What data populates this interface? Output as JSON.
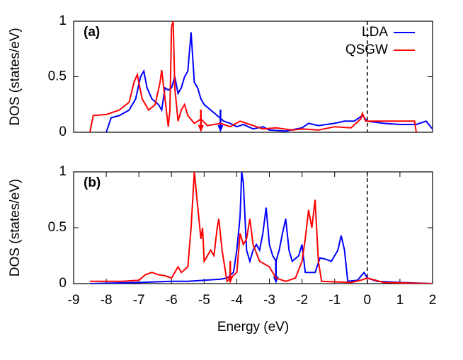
{
  "chart_data": [
    {
      "type": "line",
      "label": "(a)",
      "ylabel": "DOS (states/eV)",
      "xlim": [
        -9,
        2
      ],
      "ylim": [
        0,
        1
      ],
      "yticks": [
        0,
        0.5,
        1
      ],
      "vline": 0,
      "legend": "top-right",
      "series": [
        {
          "name": "LDA",
          "color": "#0000ff",
          "arrow_x": -4.5,
          "x": [
            -8.0,
            -7.85,
            -7.6,
            -7.3,
            -7.1,
            -6.95,
            -6.85,
            -6.75,
            -6.6,
            -6.4,
            -6.3,
            -6.2,
            -6.1,
            -6.0,
            -5.9,
            -5.8,
            -5.7,
            -5.6,
            -5.5,
            -5.4,
            -5.3,
            -5.2,
            -5.1,
            -5.0,
            -4.8,
            -4.6,
            -4.4,
            -4.2,
            -4.0,
            -3.8,
            -3.5,
            -3.2,
            -3.0,
            -2.5,
            -2.0,
            -1.8,
            -1.5,
            -1.0,
            -0.7,
            -0.4,
            -0.15,
            0,
            0.5,
            1.0,
            1.5,
            1.8,
            2.0
          ],
          "values": [
            0,
            0.13,
            0.15,
            0.2,
            0.3,
            0.5,
            0.55,
            0.4,
            0.3,
            0.25,
            0.2,
            0.4,
            0.38,
            0.4,
            0.5,
            0.35,
            0.4,
            0.5,
            0.55,
            0.9,
            0.45,
            0.4,
            0.3,
            0.25,
            0.2,
            0.15,
            0.1,
            0.08,
            0.05,
            0.07,
            0.03,
            0.05,
            0.02,
            0.01,
            0.04,
            0.08,
            0.06,
            0.08,
            0.1,
            0.1,
            0.15,
            0.1,
            0.08,
            0.07,
            0.07,
            0.1,
            0.03
          ]
        },
        {
          "name": "QSGW",
          "color": "#ff0000",
          "arrow_x": -5.1,
          "x": [
            -8.5,
            -8.4,
            -8.0,
            -7.6,
            -7.3,
            -7.15,
            -7.05,
            -6.9,
            -6.7,
            -6.5,
            -6.35,
            -6.3,
            -6.2,
            -6.1,
            -6.05,
            -6.0,
            -5.95,
            -5.9,
            -5.8,
            -5.7,
            -5.6,
            -5.5,
            -5.3,
            -5.1,
            -4.9,
            -4.5,
            -4.2,
            -3.9,
            -3.6,
            -3.2,
            -2.8,
            -2.3,
            -2.0,
            -1.5,
            -1.0,
            -0.5,
            -0.2,
            -0.15,
            -0.05,
            0.5,
            1.0,
            1.45,
            1.5
          ],
          "values": [
            0,
            0.15,
            0.16,
            0.2,
            0.27,
            0.45,
            0.52,
            0.3,
            0.2,
            0.25,
            0.45,
            0.56,
            0.3,
            0.05,
            0.2,
            0.95,
            1.0,
            0.4,
            0.1,
            0.2,
            0.25,
            0.15,
            0.08,
            0.12,
            0.06,
            0.08,
            0.05,
            0.1,
            0.07,
            0.03,
            0.04,
            0.02,
            0.03,
            0.02,
            0.05,
            0.04,
            0.12,
            0.17,
            0.1,
            0.1,
            0.1,
            0.1,
            0
          ]
        }
      ]
    },
    {
      "type": "line",
      "label": "(b)",
      "ylabel": "DOS (states/eV)",
      "xlabel": "Energy (eV)",
      "xlim": [
        -9,
        2
      ],
      "xticks": [
        -9,
        -8,
        -7,
        -6,
        -5,
        -4,
        -3,
        -2,
        -1,
        0,
        1,
        2
      ],
      "ylim": [
        0,
        1
      ],
      "yticks": [
        0,
        0.5,
        1
      ],
      "vline": 0,
      "series": [
        {
          "color": "#0000ff",
          "arrow_x": -2.8,
          "x": [
            -8.5,
            -7.0,
            -6.0,
            -5.5,
            -5.0,
            -4.5,
            -4.3,
            -4.1,
            -4.0,
            -3.9,
            -3.85,
            -3.8,
            -3.7,
            -3.6,
            -3.5,
            -3.4,
            -3.3,
            -3.2,
            -3.1,
            -3.0,
            -2.9,
            -2.8,
            -2.7,
            -2.6,
            -2.5,
            -2.4,
            -2.3,
            -2.1,
            -2.0,
            -1.9,
            -1.8,
            -1.6,
            -1.45,
            -1.3,
            -1.1,
            -0.9,
            -0.8,
            -0.7,
            -0.6,
            -0.3,
            -0.1,
            0,
            0.3,
            1.0,
            2.0
          ],
          "values": [
            0,
            0.01,
            0.02,
            0.02,
            0.03,
            0.04,
            0.05,
            0.1,
            0.3,
            0.6,
            1.0,
            0.9,
            0.3,
            0.2,
            0.3,
            0.35,
            0.3,
            0.45,
            0.68,
            0.35,
            0.25,
            0.2,
            0.3,
            0.45,
            0.58,
            0.3,
            0.2,
            0.25,
            0.35,
            0.1,
            0.1,
            0.1,
            0.23,
            0.22,
            0.2,
            0.3,
            0.43,
            0.3,
            0.02,
            0.03,
            0.1,
            0.05,
            0.02,
            0.01,
            0
          ]
        },
        {
          "color": "#ff0000",
          "arrow_x": -4.2,
          "x": [
            -8.5,
            -7.5,
            -7.0,
            -6.8,
            -6.6,
            -6.4,
            -6.2,
            -6.0,
            -5.8,
            -5.7,
            -5.5,
            -5.4,
            -5.3,
            -5.2,
            -5.1,
            -5.05,
            -5.0,
            -4.8,
            -4.7,
            -4.6,
            -4.55,
            -4.45,
            -4.3,
            -4.0,
            -3.9,
            -3.8,
            -3.7,
            -3.6,
            -3.5,
            -3.3,
            -3.0,
            -2.8,
            -2.5,
            -2.2,
            -2.0,
            -1.9,
            -1.8,
            -1.7,
            -1.6,
            -1.5,
            -1.4,
            -0.5,
            -0.2,
            0,
            0.5,
            2.0
          ],
          "values": [
            0.02,
            0.02,
            0.03,
            0.08,
            0.1,
            0.08,
            0.07,
            0.05,
            0.15,
            0.1,
            0.15,
            0.5,
            1.0,
            0.7,
            0.4,
            0.5,
            0.2,
            0.3,
            0.25,
            0.5,
            0.58,
            0.3,
            0.02,
            0.1,
            0.45,
            0.35,
            0.4,
            0.58,
            0.35,
            0.2,
            0.15,
            0.05,
            0.02,
            0.05,
            0.2,
            0.4,
            0.66,
            0.5,
            0.75,
            0.2,
            0.02,
            0.01,
            0.03,
            0.05,
            0.01,
            0
          ]
        }
      ]
    }
  ]
}
